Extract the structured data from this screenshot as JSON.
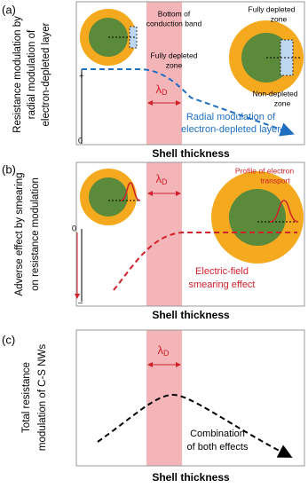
{
  "panels": [
    {
      "label": "(a)",
      "ylabel": [
        "Resistance modulation by",
        "radial modulation of",
        "electron-depleted layer"
      ],
      "xlabel": "Shell thickness",
      "axis_marks": [
        "+",
        "0"
      ],
      "lambda": {
        "symbol": "λ",
        "subscript": "D"
      },
      "annotations": [
        [
          "Bottom of",
          "conduction band"
        ],
        [
          "Fully depleted",
          "zone"
        ],
        [
          "Fully depleted",
          "zone"
        ],
        [
          "Non-depleted",
          "zone"
        ]
      ],
      "curve_label": [
        "Radial modulation of",
        "electron-depleted layer"
      ]
    },
    {
      "label": "(b)",
      "ylabel": [
        "Adverse effect by smearing",
        "on resistance modulation"
      ],
      "xlabel": "Shell thickness",
      "axis_marks": [
        "0",
        "–"
      ],
      "lambda": {
        "symbol": "λ",
        "subscript": "D"
      },
      "annotations": [
        [
          "Profile of electron",
          "transport"
        ]
      ],
      "curve_label": [
        "Electric-field",
        "smearing effect"
      ]
    },
    {
      "label": "(c)",
      "ylabel": [
        "Total resistance",
        "modulation of C-S NWs"
      ],
      "xlabel": "Shell thickness",
      "lambda": {
        "symbol": "λ",
        "subscript": "D"
      },
      "curve_label": [
        "Combination",
        "of both effects"
      ]
    }
  ]
}
